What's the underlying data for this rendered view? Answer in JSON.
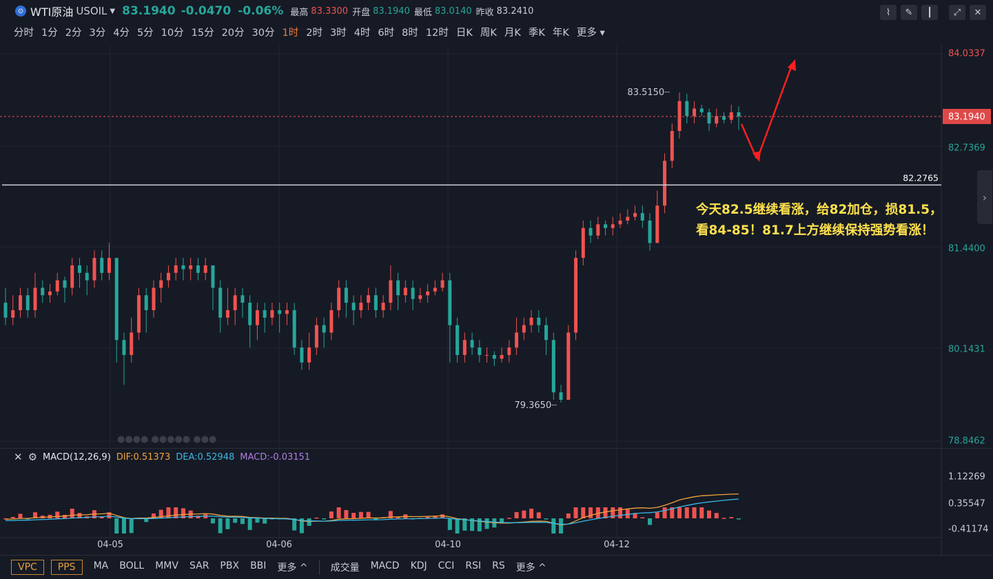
{
  "header": {
    "logo_glyph": "⊙",
    "title": "WTI原油",
    "symbol": "USOIL",
    "price": "83.1940",
    "change": "-0.0470",
    "change_pct": "-0.06%",
    "high_label": "最高",
    "high": "83.3300",
    "open_label": "开盘",
    "open": "83.1940",
    "low_label": "最低",
    "low": "83.0140",
    "prev_label": "昨收",
    "prev": "83.2410"
  },
  "tools": [
    "indicator-icon",
    "draw-icon",
    "candle-type-icon",
    "fullscreen-icon",
    "close-icon"
  ],
  "timeframes": [
    "分时",
    "1分",
    "2分",
    "3分",
    "4分",
    "5分",
    "10分",
    "15分",
    "20分",
    "30分",
    "1时",
    "2时",
    "3时",
    "4时",
    "6时",
    "8时",
    "12时",
    "日K",
    "周K",
    "月K",
    "季K",
    "年K",
    "更多"
  ],
  "active_timeframe": "1时",
  "price_axis": [
    "84.0337",
    "82.7369",
    "81.4400",
    "80.1431",
    "78.8462"
  ],
  "current_price_tag": "83.1940",
  "hline_label": "82.2765",
  "high_marker": "83.5150",
  "low_marker": "79.3650",
  "annotation_line1": "今天82.5继续看涨，给82加仓，损81.5，",
  "annotation_line2": "看84-85！81.7上方继续保持强势看涨！",
  "macd": {
    "name": "MACD(12,26,9)",
    "dif": "DIF:0.51373",
    "dea": "DEA:0.52948",
    "macd": "MACD:-0.03151",
    "axis": [
      "1.12269",
      "0.35547",
      "-0.41174"
    ]
  },
  "dates": [
    "04-05",
    "04-06",
    "04-10",
    "04-12"
  ],
  "bottom": {
    "left_buttons": [
      "VPC",
      "PPS"
    ],
    "main_indicators": [
      "MA",
      "BOLL",
      "MMV",
      "SAR",
      "PBX",
      "BBI",
      "更多 ^"
    ],
    "sub_indicators": [
      "成交量",
      "MACD",
      "KDJ",
      "CCI",
      "RSI",
      "RS",
      "更多 ^"
    ]
  },
  "colors": {
    "up": "#ef5350",
    "down": "#26a69a",
    "accent": "#ef7a3a",
    "annotation": "#ffe14d"
  },
  "chart_data": {
    "type": "candlestick",
    "ylim": [
      78.8462,
      84.0337
    ],
    "candles": [
      [
        80.7,
        80.5,
        80.9,
        80.4
      ],
      [
        80.5,
        80.6,
        80.8,
        80.4
      ],
      [
        80.6,
        80.8,
        80.9,
        80.5
      ],
      [
        80.8,
        80.6,
        80.9,
        80.5
      ],
      [
        80.6,
        80.9,
        81.1,
        80.5
      ],
      [
        80.9,
        80.8,
        81.0,
        80.7
      ],
      [
        80.8,
        80.85,
        80.95,
        80.7
      ],
      [
        80.85,
        81.0,
        81.1,
        80.8
      ],
      [
        81.0,
        80.9,
        81.05,
        80.7
      ],
      [
        80.9,
        81.2,
        81.3,
        80.8
      ],
      [
        81.2,
        81.1,
        81.3,
        80.9
      ],
      [
        81.1,
        81.0,
        81.2,
        80.8
      ],
      [
        81.0,
        81.3,
        81.4,
        80.9
      ],
      [
        81.3,
        81.1,
        81.4,
        81.0
      ],
      [
        81.1,
        81.3,
        81.5,
        81.0
      ],
      [
        81.3,
        80.2,
        81.3,
        79.9
      ],
      [
        80.2,
        80.0,
        80.3,
        79.6
      ],
      [
        80.0,
        80.3,
        80.5,
        79.9
      ],
      [
        80.3,
        80.8,
        80.9,
        80.2
      ],
      [
        80.8,
        80.6,
        80.9,
        80.3
      ],
      [
        80.6,
        80.9,
        81.0,
        80.5
      ],
      [
        80.9,
        81.0,
        81.1,
        80.7
      ],
      [
        81.0,
        81.1,
        81.2,
        80.9
      ],
      [
        81.1,
        81.2,
        81.3,
        81.0
      ],
      [
        81.2,
        81.15,
        81.3,
        81.0
      ],
      [
        81.15,
        81.2,
        81.3,
        81.0
      ],
      [
        81.2,
        81.1,
        81.3,
        81.0
      ],
      [
        81.1,
        81.2,
        81.3,
        81.0
      ],
      [
        81.2,
        80.9,
        81.2,
        80.6
      ],
      [
        80.9,
        80.5,
        81.0,
        80.3
      ],
      [
        80.5,
        80.6,
        80.9,
        80.4
      ],
      [
        80.6,
        80.8,
        80.9,
        80.4
      ],
      [
        80.8,
        80.7,
        80.9,
        80.5
      ],
      [
        80.7,
        80.4,
        80.8,
        80.1
      ],
      [
        80.4,
        80.6,
        80.7,
        80.2
      ],
      [
        80.6,
        80.5,
        80.7,
        80.3
      ],
      [
        80.5,
        80.6,
        80.7,
        80.4
      ],
      [
        80.6,
        80.55,
        80.7,
        80.3
      ],
      [
        80.55,
        80.6,
        80.7,
        80.4
      ],
      [
        80.6,
        80.1,
        80.7,
        80.0
      ],
      [
        80.1,
        79.9,
        80.2,
        79.8
      ],
      [
        79.9,
        80.1,
        80.3,
        79.8
      ],
      [
        80.1,
        80.4,
        80.5,
        80.0
      ],
      [
        80.4,
        80.3,
        80.5,
        80.1
      ],
      [
        80.3,
        80.6,
        80.7,
        80.2
      ],
      [
        80.6,
        80.9,
        81.0,
        80.5
      ],
      [
        80.9,
        80.7,
        81.0,
        80.5
      ],
      [
        80.7,
        80.6,
        80.8,
        80.4
      ],
      [
        80.6,
        80.7,
        80.8,
        80.5
      ],
      [
        80.7,
        80.8,
        80.9,
        80.6
      ],
      [
        80.8,
        80.6,
        80.9,
        80.5
      ],
      [
        80.6,
        80.7,
        80.8,
        80.5
      ],
      [
        80.7,
        81.0,
        81.2,
        80.6
      ],
      [
        81.0,
        80.8,
        81.1,
        80.6
      ],
      [
        80.8,
        80.9,
        81.0,
        80.7
      ],
      [
        80.9,
        80.75,
        81.0,
        80.6
      ],
      [
        80.75,
        80.8,
        80.9,
        80.7
      ],
      [
        80.8,
        80.85,
        80.95,
        80.7
      ],
      [
        80.85,
        80.9,
        81.0,
        80.8
      ],
      [
        80.9,
        81.0,
        81.1,
        80.85
      ],
      [
        81.0,
        80.4,
        81.1,
        79.9
      ],
      [
        80.4,
        80.0,
        80.5,
        79.9
      ],
      [
        80.0,
        80.2,
        80.3,
        79.9
      ],
      [
        80.2,
        80.1,
        80.3,
        80.0
      ],
      [
        80.1,
        80.0,
        80.2,
        79.9
      ],
      [
        80.0,
        80.0,
        80.1,
        79.9
      ],
      [
        80.0,
        79.95,
        80.05,
        79.85
      ],
      [
        79.95,
        80.0,
        80.1,
        79.9
      ],
      [
        80.0,
        80.1,
        80.2,
        79.9
      ],
      [
        80.1,
        80.3,
        80.5,
        80.0
      ],
      [
        80.3,
        80.4,
        80.5,
        80.2
      ],
      [
        80.4,
        80.5,
        80.6,
        80.3
      ],
      [
        80.5,
        80.4,
        80.6,
        80.3
      ],
      [
        80.4,
        80.2,
        80.5,
        80.0
      ],
      [
        80.2,
        79.5,
        80.3,
        79.4
      ],
      [
        79.5,
        79.4,
        79.6,
        79.365
      ],
      [
        79.4,
        80.3,
        80.4,
        79.4
      ],
      [
        80.3,
        81.3,
        81.4,
        80.2
      ],
      [
        81.3,
        81.7,
        81.8,
        81.2
      ],
      [
        81.7,
        81.6,
        81.8,
        81.5
      ],
      [
        81.6,
        81.75,
        81.85,
        81.55
      ],
      [
        81.75,
        81.7,
        81.8,
        81.6
      ],
      [
        81.7,
        81.75,
        81.85,
        81.6
      ],
      [
        81.75,
        81.8,
        81.9,
        81.7
      ],
      [
        81.8,
        81.85,
        81.95,
        81.75
      ],
      [
        81.85,
        81.9,
        82.0,
        81.8
      ],
      [
        81.9,
        81.8,
        82.0,
        81.7
      ],
      [
        81.8,
        81.5,
        81.9,
        81.4
      ],
      [
        81.5,
        82.0,
        82.2,
        81.5
      ],
      [
        82.0,
        82.6,
        82.7,
        81.9
      ],
      [
        82.6,
        83.0,
        83.1,
        82.5
      ],
      [
        83.0,
        83.4,
        83.515,
        82.9
      ],
      [
        83.4,
        83.2,
        83.5,
        83.1
      ],
      [
        83.2,
        83.3,
        83.4,
        83.1
      ],
      [
        83.3,
        83.25,
        83.35,
        83.2
      ],
      [
        83.25,
        83.1,
        83.3,
        83.0
      ],
      [
        83.1,
        83.2,
        83.3,
        83.05
      ],
      [
        83.2,
        83.15,
        83.25,
        83.1
      ],
      [
        83.15,
        83.25,
        83.35,
        83.1
      ],
      [
        83.25,
        83.194,
        83.33,
        83.014
      ]
    ]
  }
}
